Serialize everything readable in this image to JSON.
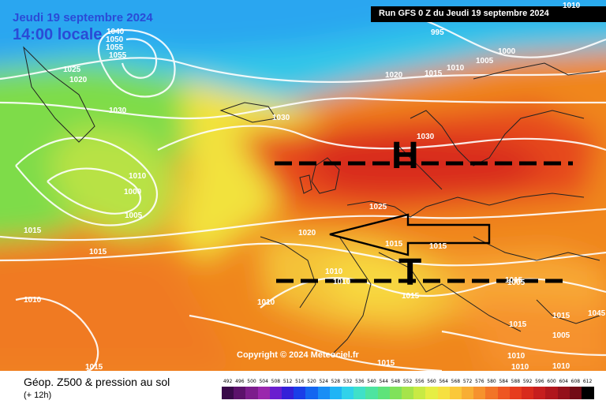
{
  "header": {
    "date": "Jeudi 19 septembre 2024",
    "time": "14:00 locale",
    "run": "Run GFS 0 Z du Jeudi 19 septembre 2024"
  },
  "copyright": "Copyright © 2024 Meteociel.fr",
  "footer": {
    "title": "Géop. Z500 & pression au sol",
    "step": "(+ 12h)"
  },
  "map_labels": {
    "pressure_centers": [
      "H",
      "T"
    ],
    "isobars": [
      "1040",
      "1050",
      "1055",
      "1055",
      "1025",
      "1015",
      "1010",
      "1000",
      "1005",
      "1015",
      "1015",
      "1020",
      "1030",
      "1030",
      "1020",
      "1025",
      "1020",
      "1015",
      "1015",
      "995",
      "1005",
      "1000",
      "1015",
      "1010",
      "1010",
      "1030",
      "1010",
      "1010",
      "1015",
      "1010",
      "1015",
      "1015",
      "1005",
      "1010",
      "1010",
      "1010",
      "1015",
      "1045",
      "1010",
      "1015",
      "1005"
    ]
  },
  "colorbar": {
    "unit_values": [
      "492",
      "496",
      "500",
      "504",
      "508",
      "512",
      "516",
      "520",
      "524",
      "528",
      "532",
      "536",
      "540",
      "544",
      "548",
      "552",
      "556",
      "560",
      "564",
      "568",
      "572",
      "576",
      "580",
      "584",
      "588",
      "592",
      "596",
      "600",
      "604",
      "608",
      "612"
    ],
    "colors": [
      "#3a0a4a",
      "#5c126b",
      "#7c1d8c",
      "#9a27ad",
      "#6a1ecf",
      "#3420d8",
      "#1a3ee8",
      "#1466f0",
      "#1a8ef5",
      "#20b4f5",
      "#30d2ea",
      "#40e0c8",
      "#4ee4a0",
      "#5ee37a",
      "#80e25a",
      "#a6e44a",
      "#c8ea44",
      "#e6ee44",
      "#f6e040",
      "#fac83a",
      "#f8ae34",
      "#f6922e",
      "#f27428",
      "#ee5622",
      "#e63c1e",
      "#d82a1c",
      "#c61e1e",
      "#b0161c",
      "#94101a",
      "#720c16",
      "#000000"
    ]
  }
}
